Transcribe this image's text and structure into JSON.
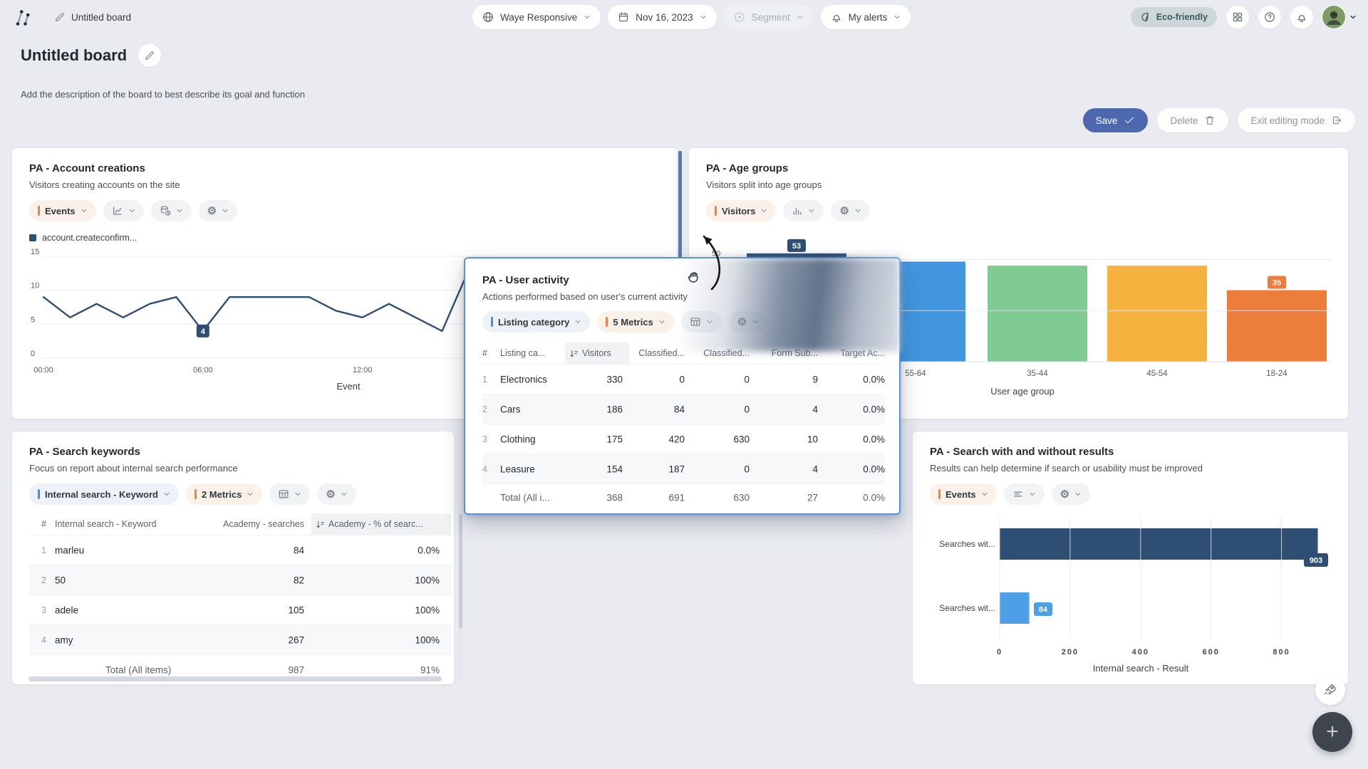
{
  "navbar": {
    "board_name": "Untitled board",
    "website_picker": {
      "icon": "globe",
      "label": "Waye Responsive"
    },
    "date_picker": {
      "icon": "calendar",
      "label": "Nov 16, 2023"
    },
    "segment_picker": {
      "icon": "target",
      "label": "Segment",
      "disabled": true
    },
    "alerts_picker": {
      "icon": "bell",
      "label": "My alerts"
    },
    "plan_badge": {
      "icon": "leaf",
      "label": "Eco-friendly"
    },
    "icon_buttons": [
      "apps-grid",
      "help",
      "notifications-bell"
    ]
  },
  "page": {
    "title": "Untitled board",
    "description": "Add the description of the board to best describe its goal and function",
    "actions": {
      "save": "Save",
      "delete": "Delete",
      "exit": "Exit editing mode"
    }
  },
  "widgets": {
    "account_creations": {
      "title": "PA - Account creations",
      "subtitle": "Visitors creating accounts on the site",
      "chips": [
        {
          "label": "Events",
          "accent": "#ef8142"
        },
        {
          "icon": "line-chart"
        },
        {
          "icon": "data-history"
        },
        {
          "icon": "gear"
        }
      ],
      "legend": {
        "color": "#2e4e74",
        "label": "account.createconfirm..."
      }
    },
    "age_groups": {
      "title": "PA - Age groups",
      "subtitle": "Visitors split into age groups",
      "chips": [
        {
          "label": "Visitors",
          "accent": "#ef8142"
        },
        {
          "icon": "bar-chart"
        },
        {
          "icon": "gear"
        }
      ]
    },
    "search_keywords": {
      "title": "PA - Search keywords",
      "subtitle": "Focus on report about internal search performance",
      "chips": [
        {
          "label": "Internal search - Keyword",
          "accent": "#4a90e2"
        },
        {
          "label": "2 Metrics",
          "accent": "#ef8142"
        },
        {
          "icon": "table"
        },
        {
          "icon": "gear"
        }
      ]
    },
    "search_results": {
      "title": "PA - Search with and without results",
      "subtitle": "Results can help determine if search or usability must be improved",
      "chips": [
        {
          "label": "Events",
          "accent": "#ef8142"
        },
        {
          "icon": "h-bars"
        },
        {
          "icon": "gear"
        }
      ]
    },
    "user_activity": {
      "title": "PA - User activity",
      "subtitle": "Actions performed based on user's current activity",
      "chips": [
        {
          "label": "Listing category",
          "accent": "#4a90e2"
        },
        {
          "label": "5 Metrics",
          "accent": "#ef8142"
        },
        {
          "icon": "table"
        },
        {
          "icon": "gear"
        }
      ]
    }
  },
  "tables": {
    "search_keywords": {
      "headers": [
        "#",
        "Internal search - Keyword",
        "Academy - searches",
        "Academy - % of searc..."
      ],
      "sorted_column": 3,
      "rows": [
        [
          "1",
          "marleu",
          "84",
          "0.0%"
        ],
        [
          "2",
          "50",
          "82",
          "100%"
        ],
        [
          "3",
          "adele",
          "105",
          "100%"
        ],
        [
          "4",
          "amy",
          "267",
          "100%"
        ]
      ],
      "total": [
        "Total (All items)",
        "987",
        "91%"
      ]
    },
    "user_activity": {
      "headers": [
        "#",
        "Listing ca...",
        "Visitors",
        "Classified...",
        "Classified...",
        "Form Sub...",
        "Target Ac..."
      ],
      "sorted_column": 2,
      "rows": [
        [
          "1",
          "Electronics",
          "330",
          "0",
          "0",
          "9",
          "0.0%"
        ],
        [
          "2",
          "Cars",
          "186",
          "84",
          "0",
          "4",
          "0.0%"
        ],
        [
          "3",
          "Clothing",
          "175",
          "420",
          "630",
          "10",
          "0.0%"
        ],
        [
          "4",
          "Leasure",
          "154",
          "187",
          "0",
          "4",
          "0.0%"
        ]
      ],
      "total": [
        "Total (All i...",
        "368",
        "691",
        "630",
        "27",
        "0.0%"
      ]
    }
  },
  "chart_data": [
    {
      "id": "account-trend",
      "type": "line",
      "widget": "PA - Account creations",
      "series": [
        {
          "name": "account.createconfirm...",
          "color": "#2e4e74",
          "values": [
            9,
            6,
            8,
            6,
            8,
            9,
            4,
            9,
            9,
            9,
            9,
            7,
            6,
            8,
            6,
            4,
            13
          ]
        }
      ],
      "x_start_hour": 0,
      "x_step_hours": 1,
      "x_ticks": [
        "00:00",
        "06:00",
        "12:00"
      ],
      "xlabel": "Event",
      "ylim": [
        0,
        15
      ],
      "yticks": [
        0,
        5,
        10,
        15
      ],
      "point_label": {
        "index": 6,
        "value": 4
      }
    },
    {
      "id": "age-groups",
      "type": "bar",
      "widget": "PA - Age groups",
      "categories": [
        "",
        "55-64",
        "35-44",
        "45-54",
        "18-24"
      ],
      "values": [
        53,
        49,
        47,
        47,
        35
      ],
      "colors": [
        "#2e4e74",
        "#4296e0",
        "#7fcb93",
        "#f5b23e",
        "#ed7d3a"
      ],
      "value_badges": [
        {
          "index": 0,
          "value": 53,
          "color": "#2e4e74"
        },
        {
          "index": 4,
          "value": 35,
          "color": "#ed7d3a"
        }
      ],
      "yticks": [
        25,
        50
      ],
      "ytick_labels_shown": [
        "50"
      ],
      "ylim": [
        0,
        60
      ],
      "xlabel": "User age group"
    },
    {
      "id": "search-results",
      "type": "horizontal-bar",
      "widget": "PA - Search with and without results",
      "categories": [
        "Searches wit...",
        "Searches wit..."
      ],
      "values": [
        903,
        84
      ],
      "colors": [
        "#2e4e74",
        "#4da0e8"
      ],
      "xticks": [
        0,
        200,
        400,
        600,
        800
      ],
      "xlim": [
        0,
        940
      ],
      "xlabel": "Internal search - Result"
    }
  ],
  "floating": {
    "assistant_icon": "rocket",
    "add_button": "+"
  }
}
